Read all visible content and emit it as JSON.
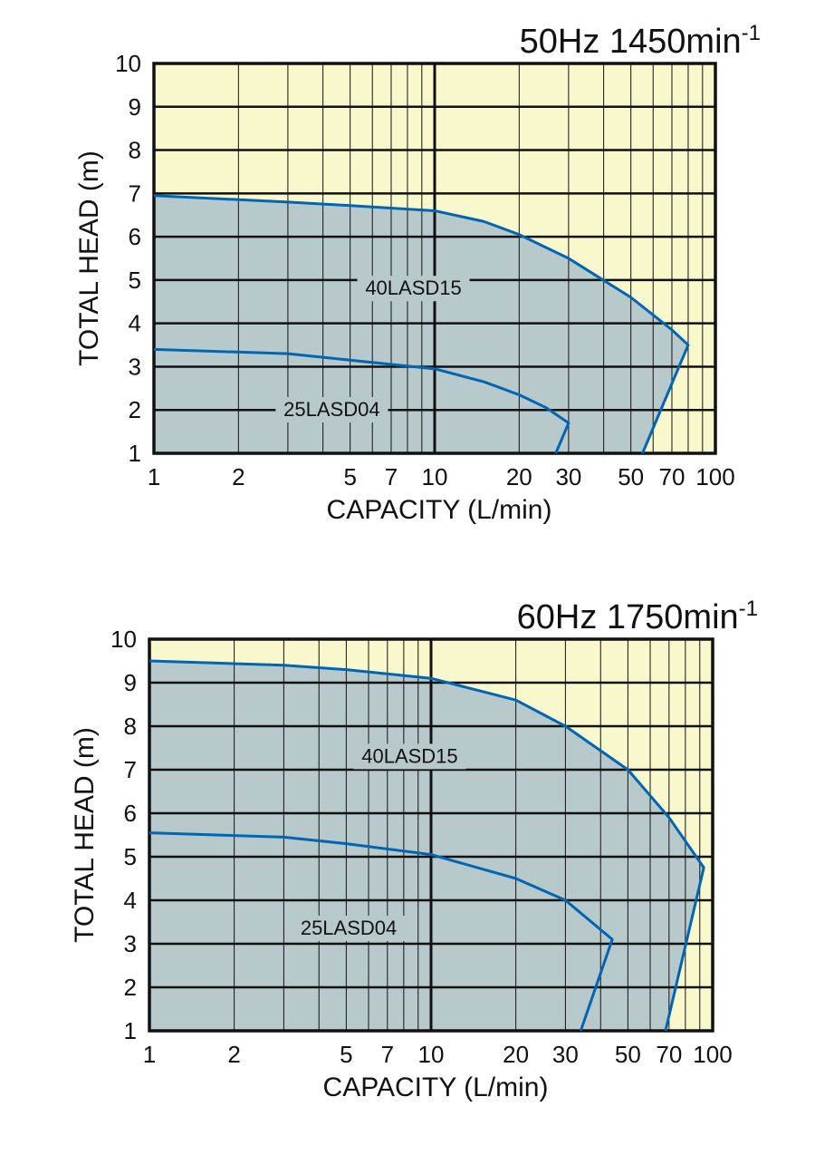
{
  "colors": {
    "background": "#f9f8cc",
    "fill": "#b7c9cb",
    "curve": "#0066b3",
    "grid": "#111111"
  },
  "chart_data": [
    {
      "type": "line",
      "title": "50Hz 1450min",
      "title_sup": "-1",
      "xlabel": "CAPACITY (L/min)",
      "ylabel": "TOTAL HEAD (m)",
      "xscale": "log",
      "xlim": [
        1,
        100
      ],
      "ylim": [
        1,
        10
      ],
      "xticks": [
        "1",
        "2",
        "5",
        "7",
        "10",
        "20",
        "30",
        "50",
        "70",
        "100"
      ],
      "yticks": [
        "1",
        "2",
        "3",
        "4",
        "5",
        "6",
        "7",
        "8",
        "9",
        "10"
      ],
      "grid": true,
      "series": [
        {
          "name": "40LASD15",
          "label_at": [
            8.4,
            4.7
          ],
          "points": [
            [
              1,
              6.95
            ],
            [
              3,
              6.8
            ],
            [
              5,
              6.72
            ],
            [
              10,
              6.6
            ],
            [
              15,
              6.35
            ],
            [
              20,
              6.05
            ],
            [
              30,
              5.5
            ],
            [
              50,
              4.6
            ],
            [
              70,
              3.85
            ],
            [
              80,
              3.5
            ],
            [
              55,
              1
            ]
          ]
        },
        {
          "name": "25LASD04",
          "label_at": [
            4.3,
            1.9
          ],
          "points": [
            [
              1,
              3.4
            ],
            [
              3,
              3.3
            ],
            [
              5,
              3.15
            ],
            [
              10,
              2.95
            ],
            [
              15,
              2.65
            ],
            [
              20,
              2.35
            ],
            [
              25,
              2.05
            ],
            [
              30,
              1.7
            ],
            [
              27,
              1
            ]
          ]
        }
      ]
    },
    {
      "type": "line",
      "title": "60Hz 1750min",
      "title_sup": "-1",
      "xlabel": "CAPACITY (L/min)",
      "ylabel": "TOTAL HEAD (m)",
      "xscale": "log",
      "xlim": [
        1,
        100
      ],
      "ylim": [
        1,
        10
      ],
      "xticks": [
        "1",
        "2",
        "5",
        "7",
        "10",
        "20",
        "30",
        "50",
        "70",
        "100"
      ],
      "yticks": [
        "1",
        "2",
        "3",
        "4",
        "5",
        "6",
        "7",
        "8",
        "9",
        "10"
      ],
      "grid": true,
      "series": [
        {
          "name": "40LASD15",
          "label_at": [
            8.4,
            7.2
          ],
          "points": [
            [
              1,
              9.5
            ],
            [
              3,
              9.4
            ],
            [
              5,
              9.3
            ],
            [
              10,
              9.1
            ],
            [
              20,
              8.6
            ],
            [
              30,
              8.0
            ],
            [
              50,
              7.0
            ],
            [
              70,
              5.9
            ],
            [
              93,
              4.75
            ],
            [
              68,
              1
            ]
          ]
        },
        {
          "name": "25LASD04",
          "label_at": [
            5.1,
            3.25
          ],
          "points": [
            [
              1,
              5.55
            ],
            [
              3,
              5.45
            ],
            [
              5,
              5.3
            ],
            [
              10,
              5.05
            ],
            [
              20,
              4.5
            ],
            [
              30,
              4.0
            ],
            [
              44,
              3.1
            ],
            [
              34,
              1
            ]
          ]
        }
      ]
    }
  ]
}
